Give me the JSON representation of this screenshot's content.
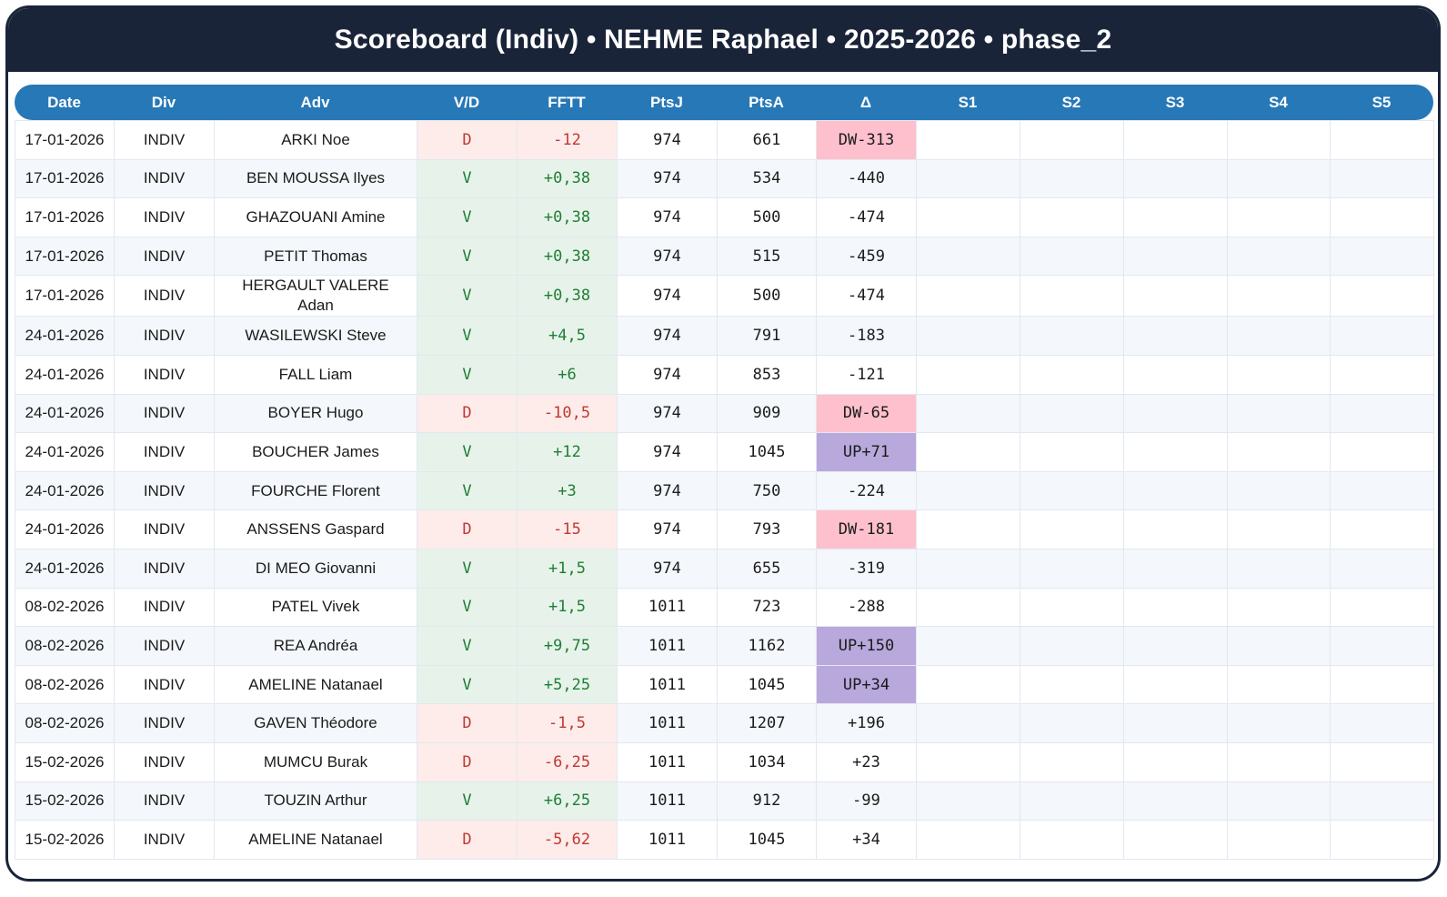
{
  "title": "Scoreboard (Indiv) • NEHME Raphael • 2025-2026 • phase_2",
  "table": {
    "columns": [
      "Date",
      "Div",
      "Adv",
      "V/D",
      "FFTT",
      "PtsJ",
      "PtsA",
      "Δ",
      "S1",
      "S2",
      "S3",
      "S4",
      "S5"
    ],
    "rows": [
      {
        "date": "17-01-2026",
        "div": "INDIV",
        "adv": "ARKI Noe",
        "vd": "D",
        "fftt": "-12",
        "ptsj": "974",
        "ptsa": "661",
        "delta": "DW-313",
        "s": [
          "",
          "",
          "",
          "",
          ""
        ]
      },
      {
        "date": "17-01-2026",
        "div": "INDIV",
        "adv": "BEN MOUSSA Ilyes",
        "vd": "V",
        "fftt": "+0,38",
        "ptsj": "974",
        "ptsa": "534",
        "delta": "-440",
        "s": [
          "",
          "",
          "",
          "",
          ""
        ]
      },
      {
        "date": "17-01-2026",
        "div": "INDIV",
        "adv": "GHAZOUANI Amine",
        "vd": "V",
        "fftt": "+0,38",
        "ptsj": "974",
        "ptsa": "500",
        "delta": "-474",
        "s": [
          "",
          "",
          "",
          "",
          ""
        ]
      },
      {
        "date": "17-01-2026",
        "div": "INDIV",
        "adv": "PETIT Thomas",
        "vd": "V",
        "fftt": "+0,38",
        "ptsj": "974",
        "ptsa": "515",
        "delta": "-459",
        "s": [
          "",
          "",
          "",
          "",
          ""
        ]
      },
      {
        "date": "17-01-2026",
        "div": "INDIV",
        "adv": "HERGAULT VALERE\nAdan",
        "vd": "V",
        "fftt": "+0,38",
        "ptsj": "974",
        "ptsa": "500",
        "delta": "-474",
        "s": [
          "",
          "",
          "",
          "",
          ""
        ]
      },
      {
        "date": "24-01-2026",
        "div": "INDIV",
        "adv": "WASILEWSKI Steve",
        "vd": "V",
        "fftt": "+4,5",
        "ptsj": "974",
        "ptsa": "791",
        "delta": "-183",
        "s": [
          "",
          "",
          "",
          "",
          ""
        ]
      },
      {
        "date": "24-01-2026",
        "div": "INDIV",
        "adv": "FALL Liam",
        "vd": "V",
        "fftt": "+6",
        "ptsj": "974",
        "ptsa": "853",
        "delta": "-121",
        "s": [
          "",
          "",
          "",
          "",
          ""
        ]
      },
      {
        "date": "24-01-2026",
        "div": "INDIV",
        "adv": "BOYER Hugo",
        "vd": "D",
        "fftt": "-10,5",
        "ptsj": "974",
        "ptsa": "909",
        "delta": "DW-65",
        "s": [
          "",
          "",
          "",
          "",
          ""
        ]
      },
      {
        "date": "24-01-2026",
        "div": "INDIV",
        "adv": "BOUCHER James",
        "vd": "V",
        "fftt": "+12",
        "ptsj": "974",
        "ptsa": "1045",
        "delta": "UP+71",
        "s": [
          "",
          "",
          "",
          "",
          ""
        ]
      },
      {
        "date": "24-01-2026",
        "div": "INDIV",
        "adv": "FOURCHE Florent",
        "vd": "V",
        "fftt": "+3",
        "ptsj": "974",
        "ptsa": "750",
        "delta": "-224",
        "s": [
          "",
          "",
          "",
          "",
          ""
        ]
      },
      {
        "date": "24-01-2026",
        "div": "INDIV",
        "adv": "ANSSENS Gaspard",
        "vd": "D",
        "fftt": "-15",
        "ptsj": "974",
        "ptsa": "793",
        "delta": "DW-181",
        "s": [
          "",
          "",
          "",
          "",
          ""
        ]
      },
      {
        "date": "24-01-2026",
        "div": "INDIV",
        "adv": "DI MEO Giovanni",
        "vd": "V",
        "fftt": "+1,5",
        "ptsj": "974",
        "ptsa": "655",
        "delta": "-319",
        "s": [
          "",
          "",
          "",
          "",
          ""
        ]
      },
      {
        "date": "08-02-2026",
        "div": "INDIV",
        "adv": "PATEL Vivek",
        "vd": "V",
        "fftt": "+1,5",
        "ptsj": "1011",
        "ptsa": "723",
        "delta": "-288",
        "s": [
          "",
          "",
          "",
          "",
          ""
        ]
      },
      {
        "date": "08-02-2026",
        "div": "INDIV",
        "adv": "REA Andréa",
        "vd": "V",
        "fftt": "+9,75",
        "ptsj": "1011",
        "ptsa": "1162",
        "delta": "UP+150",
        "s": [
          "",
          "",
          "",
          "",
          ""
        ]
      },
      {
        "date": "08-02-2026",
        "div": "INDIV",
        "adv": "AMELINE Natanael",
        "vd": "V",
        "fftt": "+5,25",
        "ptsj": "1011",
        "ptsa": "1045",
        "delta": "UP+34",
        "s": [
          "",
          "",
          "",
          "",
          ""
        ]
      },
      {
        "date": "08-02-2026",
        "div": "INDIV",
        "adv": "GAVEN Théodore",
        "vd": "D",
        "fftt": "-1,5",
        "ptsj": "1011",
        "ptsa": "1207",
        "delta": "+196",
        "s": [
          "",
          "",
          "",
          "",
          ""
        ]
      },
      {
        "date": "15-02-2026",
        "div": "INDIV",
        "adv": "MUMCU Burak",
        "vd": "D",
        "fftt": "-6,25",
        "ptsj": "1011",
        "ptsa": "1034",
        "delta": "+23",
        "s": [
          "",
          "",
          "",
          "",
          ""
        ]
      },
      {
        "date": "15-02-2026",
        "div": "INDIV",
        "adv": "TOUZIN Arthur",
        "vd": "V",
        "fftt": "+6,25",
        "ptsj": "1011",
        "ptsa": "912",
        "delta": "-99",
        "s": [
          "",
          "",
          "",
          "",
          ""
        ]
      },
      {
        "date": "15-02-2026",
        "div": "INDIV",
        "adv": "AMELINE Natanael",
        "vd": "D",
        "fftt": "-5,62",
        "ptsj": "1011",
        "ptsa": "1045",
        "delta": "+34",
        "s": [
          "",
          "",
          "",
          "",
          ""
        ]
      }
    ]
  },
  "colors": {
    "title_bar_navy": "#1a2439",
    "header_blue": "#2778b7",
    "win_bg": "#e7f3ea",
    "win_text": "#1e7e34",
    "loss_bg": "#fdecea",
    "loss_text": "#c13832",
    "delta_up_bg": "#b8a8dc",
    "delta_down_bg": "#ffc0cd",
    "row_alt_bg": "#f4f7fb"
  }
}
